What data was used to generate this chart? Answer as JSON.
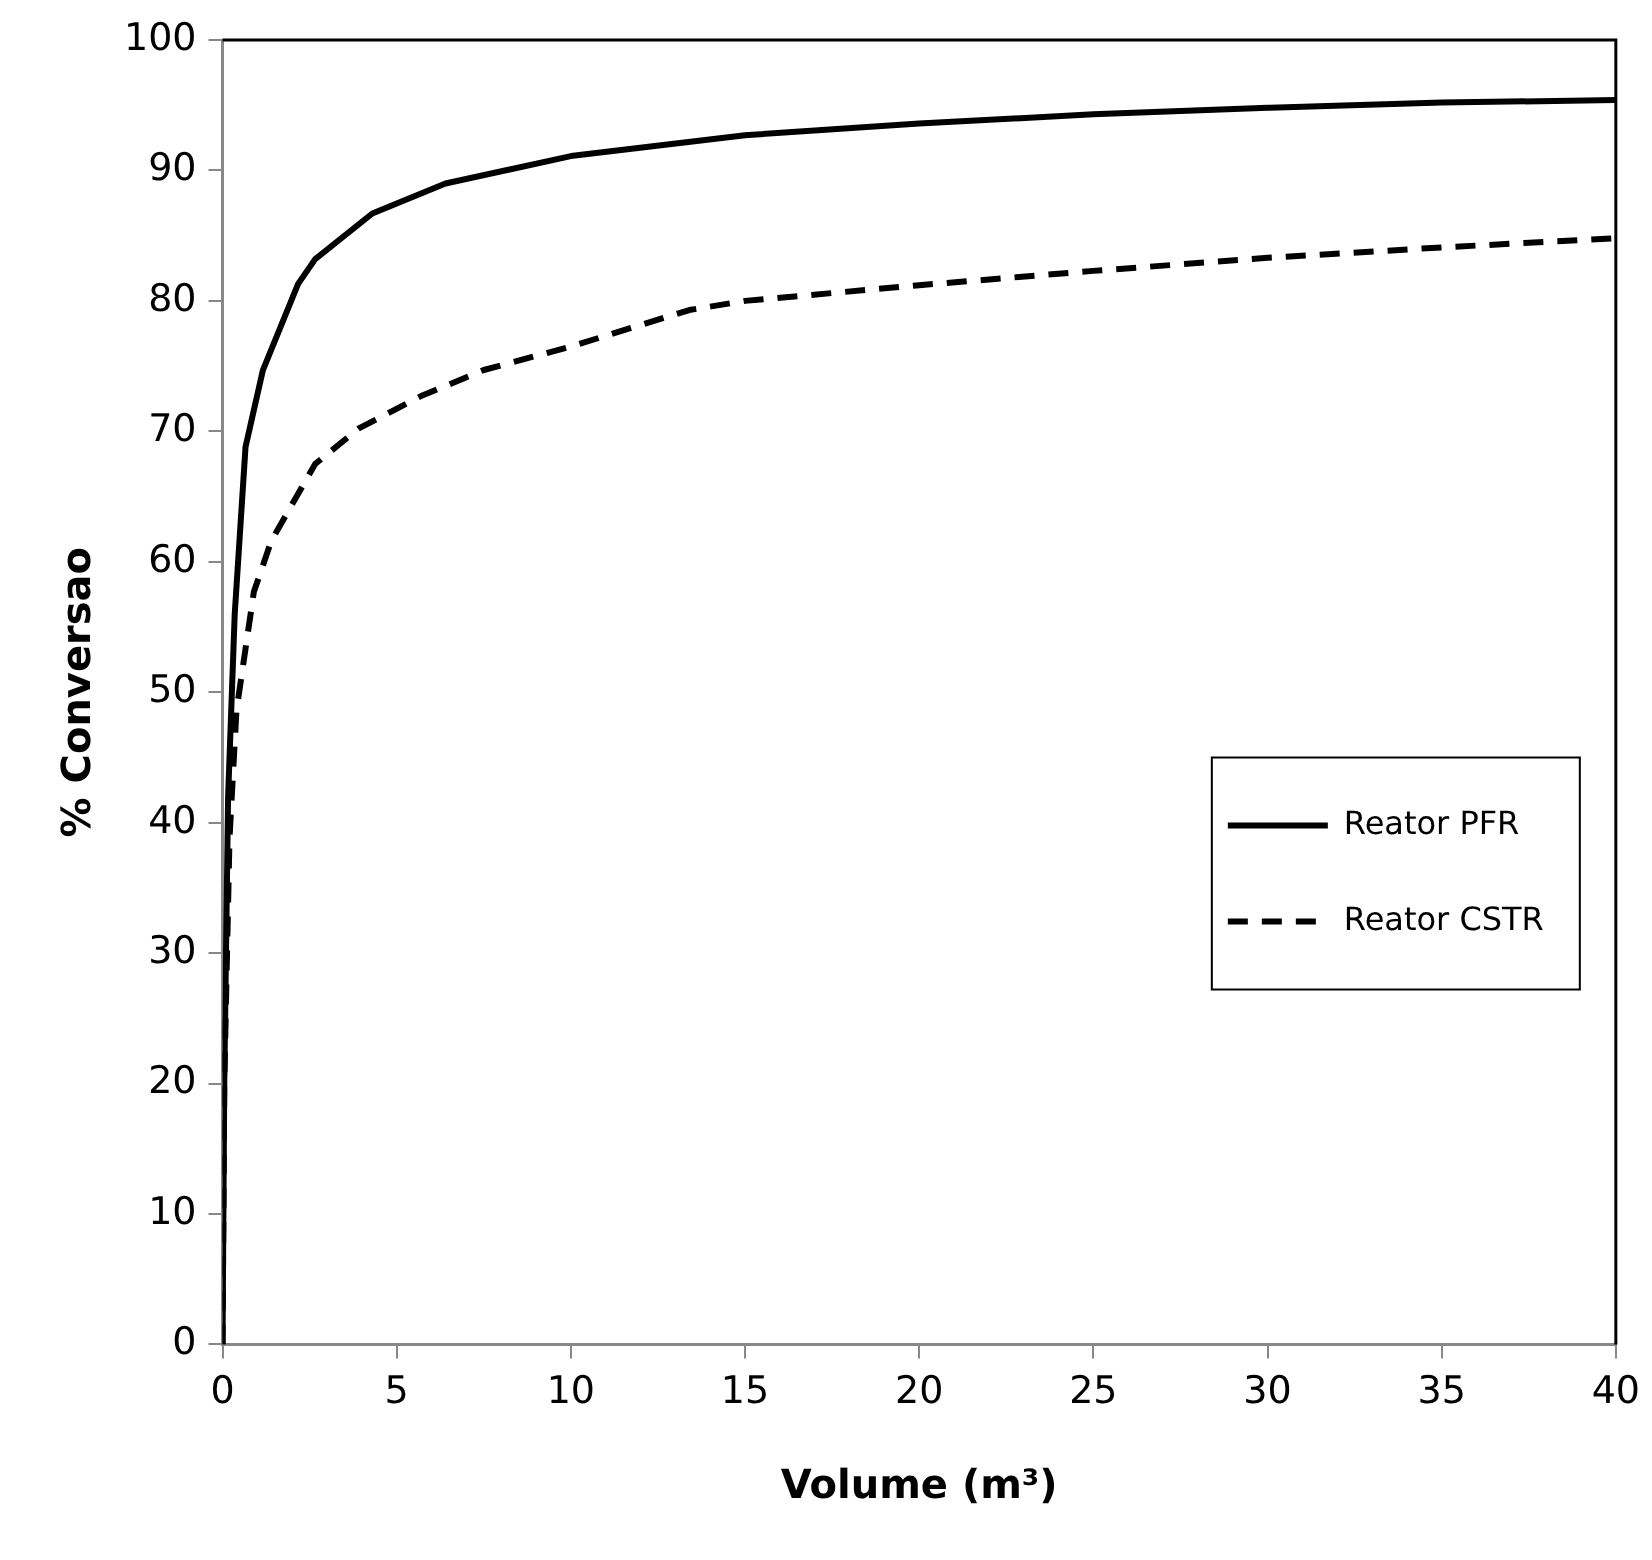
{
  "chart_data": {
    "type": "line",
    "xlabel": "Volume (m³)",
    "ylabel": "% Conversao",
    "xlim": [
      0,
      40
    ],
    "xticks": [
      0,
      5,
      10,
      15,
      20,
      25,
      30,
      35,
      40
    ],
    "ylim": [
      0,
      100
    ],
    "yticks": [
      0,
      10,
      20,
      30,
      40,
      50,
      60,
      70,
      80,
      90,
      100
    ],
    "grid": false,
    "legend": "right",
    "marker": "none",
    "series": [
      {
        "name": "Reator PFR",
        "color": "#000000",
        "line_style": "solid",
        "x": [
          0,
          0.05,
          0.16,
          0.35,
          0.66,
          1.16,
          2.17,
          2.66,
          4.3,
          6.4,
          10,
          15,
          20,
          25,
          30,
          35,
          40
        ],
        "values": [
          0,
          20,
          42,
          56,
          68.8,
          74.7,
          81.3,
          83.2,
          86.7,
          89,
          91.1,
          92.7,
          93.6,
          94.3,
          94.8,
          95.2,
          95.4
        ]
      },
      {
        "name": "Reator CSTR",
        "color": "#000000",
        "line_style": "dashed",
        "x": [
          0,
          0.05,
          0.2,
          0.4,
          0.9,
          1.4,
          2.66,
          3.9,
          5.7,
          7.5,
          10,
          13.4,
          15,
          20,
          25,
          30,
          35,
          40
        ],
        "values": [
          0,
          20,
          38.8,
          48.6,
          57.7,
          61.6,
          67.5,
          70.2,
          72.7,
          74.7,
          76.5,
          79.3,
          80,
          81.2,
          82.3,
          83.3,
          84.1,
          84.8
        ]
      }
    ]
  }
}
